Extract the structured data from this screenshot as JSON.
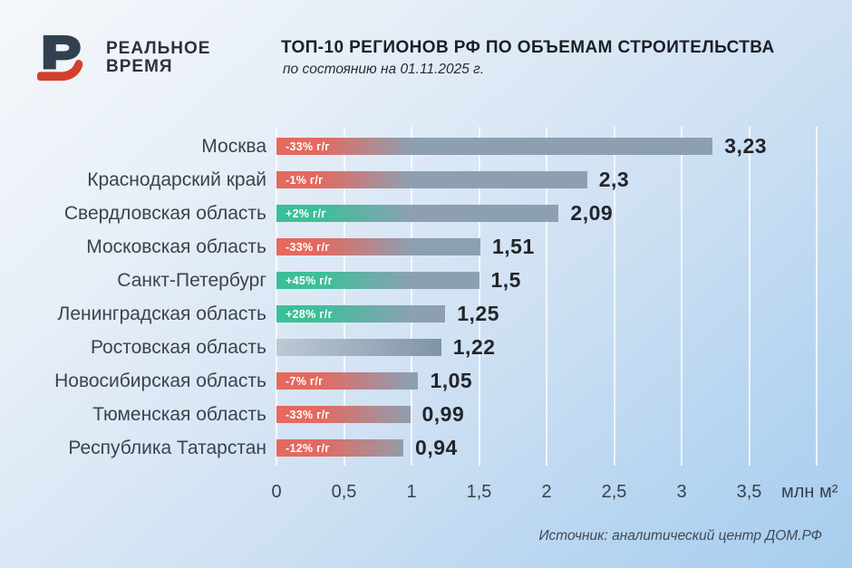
{
  "header": {
    "logo_line1": "РЕАЛЬНОЕ",
    "logo_line2": "ВРЕМЯ",
    "title": "ТОП-10 РЕГИОНОВ РФ ПО ОБЪЕМАМ СТРОИТЕЛЬСТВА",
    "subtitle": "по состоянию на 01.11.2025 г."
  },
  "chart_data": {
    "type": "bar",
    "orientation": "horizontal",
    "title": "ТОП-10 РЕГИОНОВ РФ ПО ОБЪЕМАМ СТРОИТЕЛЬСТВА",
    "subtitle": "по состоянию на 01.11.2025 г.",
    "categories": [
      "Москва",
      "Краснодарский край",
      "Свердловская область",
      "Московская область",
      "Санкт-Петербург",
      "Ленинградская область",
      "Ростовская область",
      "Новосибирская область",
      "Тюменская область",
      "Республика Татарстан"
    ],
    "values": [
      3.23,
      2.3,
      2.09,
      1.51,
      1.5,
      1.25,
      1.22,
      1.05,
      0.99,
      0.94
    ],
    "value_labels": [
      "3,23",
      "2,3",
      "2,09",
      "1,51",
      "1,5",
      "1,25",
      "1,22",
      "1,05",
      "0,99",
      "0,94"
    ],
    "badges": [
      {
        "label": "-33% г/г",
        "direction": "negative"
      },
      {
        "label": "-1% г/г",
        "direction": "negative"
      },
      {
        "label": "+2% г/г",
        "direction": "positive"
      },
      {
        "label": "-33% г/г",
        "direction": "negative"
      },
      {
        "label": "+45% г/г",
        "direction": "positive"
      },
      {
        "label": "+28% г/г",
        "direction": "positive"
      },
      null,
      {
        "label": "-7% г/г",
        "direction": "negative"
      },
      {
        "label": "-33% г/г",
        "direction": "negative"
      },
      {
        "label": "-12% г/г",
        "direction": "negative"
      }
    ],
    "x_ticks": [
      "0",
      "0,5",
      "1",
      "1,5",
      "2",
      "2,5",
      "3",
      "3,5"
    ],
    "x_tick_values": [
      0,
      0.5,
      1,
      1.5,
      2,
      2.5,
      3,
      3.5
    ],
    "unit": "млн м²",
    "xlim": [
      0,
      4
    ],
    "grid_step": 0.5,
    "grid": true,
    "colors": {
      "negative": "#e4695f",
      "positive": "#3cbf99",
      "bar": "#8da0b2",
      "bar_dark": "#8095a9",
      "neutral_start": "#bdc9d4",
      "logo_dark": "#32404f",
      "logo_red": "#d4402d"
    }
  },
  "footer": {
    "source": "Источник: аналитический центр ДОМ.РФ"
  }
}
